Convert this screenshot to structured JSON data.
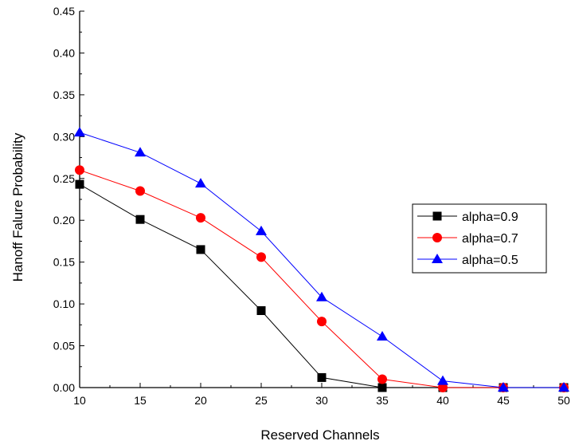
{
  "chart_data": {
    "type": "line",
    "xlabel": "Reserved Channels",
    "ylabel": "Hanoff Falure Probability",
    "xlim": [
      10,
      50
    ],
    "ylim": [
      0,
      0.45
    ],
    "x_ticks": [
      "10",
      "15",
      "20",
      "25",
      "30",
      "35",
      "40",
      "45",
      "50"
    ],
    "y_ticks": [
      "0.00",
      "0.05",
      "0.10",
      "0.15",
      "0.20",
      "0.25",
      "0.30",
      "0.35",
      "0.40",
      "0.45"
    ],
    "x": [
      10,
      15,
      20,
      25,
      30,
      35,
      40,
      45,
      50
    ],
    "series": [
      {
        "name": "alpha=0.9",
        "color": "#000000",
        "marker": "square",
        "values": [
          0.243,
          0.201,
          0.165,
          0.092,
          0.012,
          0.0,
          0.0,
          0.0,
          0.0
        ]
      },
      {
        "name": "alpha=0.7",
        "color": "#ff0000",
        "marker": "circle",
        "values": [
          0.26,
          0.235,
          0.203,
          0.156,
          0.079,
          0.01,
          0.0,
          0.0,
          0.0
        ]
      },
      {
        "name": "alpha=0.5",
        "color": "#0000ff",
        "marker": "triangle",
        "values": [
          0.305,
          0.281,
          0.244,
          0.187,
          0.108,
          0.061,
          0.008,
          0.0,
          0.0
        ]
      }
    ],
    "grid": false,
    "legend_position": "right"
  }
}
